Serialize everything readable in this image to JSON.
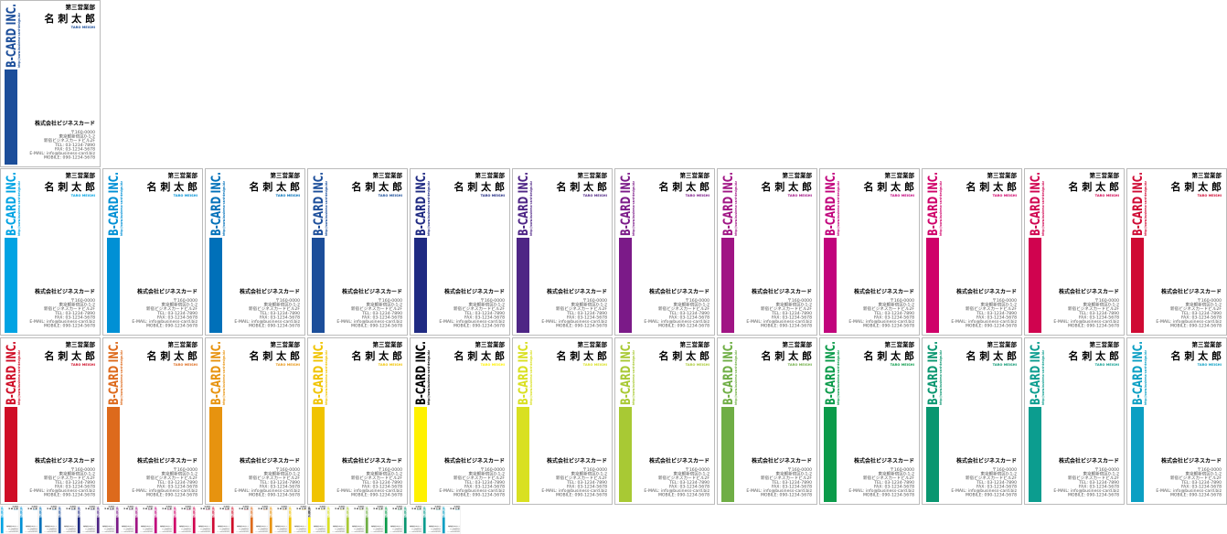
{
  "card": {
    "logo": "B-CARD INC.",
    "url": "http://www.business-card-design.biz",
    "department": "第三営業部",
    "name": "名 刺 太 郎",
    "romaji": "TARO MEISHI",
    "company": "株式会社ビジネスカード",
    "address": [
      "〒160-0000",
      "東京都新宿区0-1-2",
      "新宿ビジネスカードビル2F",
      "TEL: 03-1234-7890",
      "FAX: 03-1234-5678",
      "E-MAIL: info@business-card.biz",
      "MOBILE: 090-1234-5678"
    ]
  },
  "featured": {
    "color": "#1c4e9a"
  },
  "variants": [
    {
      "color": "#00a3e3"
    },
    {
      "color": "#0090d5"
    },
    {
      "color": "#0070b9"
    },
    {
      "color": "#1c4e9a"
    },
    {
      "color": "#1f2a82"
    },
    {
      "color": "#4e2585"
    },
    {
      "color": "#7b1a88"
    },
    {
      "color": "#a01484"
    },
    {
      "color": "#c1037c"
    },
    {
      "color": "#cf0069"
    },
    {
      "color": "#d0034f"
    },
    {
      "color": "#cf0a33"
    },
    {
      "color": "#cf0d26"
    },
    {
      "color": "#dd6a1c"
    },
    {
      "color": "#e7930f"
    },
    {
      "color": "#f0c300"
    },
    {
      "color": "#fff100",
      "logo_color": "#000000"
    },
    {
      "color": "#d9e021"
    },
    {
      "color": "#a8c934"
    },
    {
      "color": "#6fae45"
    },
    {
      "color": "#0b9b4a"
    },
    {
      "color": "#0a9670"
    },
    {
      "color": "#0c9d8f"
    },
    {
      "color": "#0b9fc3"
    }
  ]
}
